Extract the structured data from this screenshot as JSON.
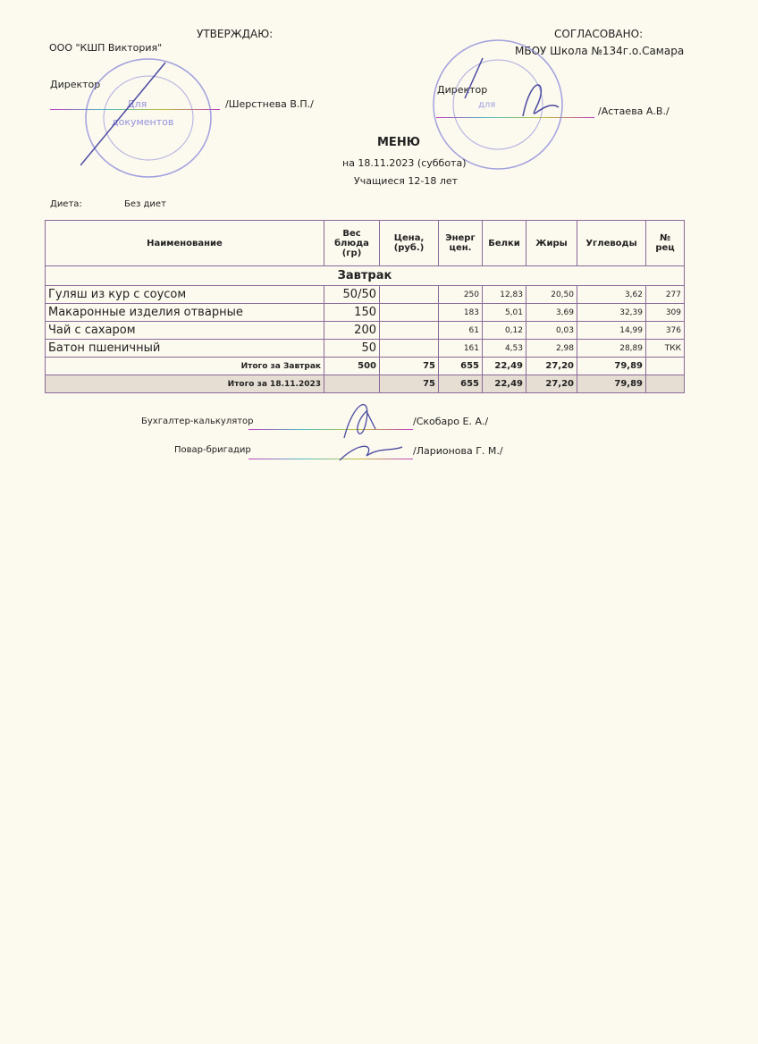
{
  "approve": {
    "title": "УТВЕРЖДАЮ:",
    "org": "ООО \"КШП Виктория\"",
    "role": "Директор",
    "name": "/Шерстнева В.П./"
  },
  "agree": {
    "title": "СОГЛАСОВАНО:",
    "org": "МБОУ Школа №134г.о.Самара",
    "role": "Директор",
    "name": "/Астаева А.В./"
  },
  "header": {
    "title": "МЕНЮ",
    "date": "на 18.11.2023  (суббота)",
    "group": "Учащиеся 12-18 лет"
  },
  "diet": {
    "label": "Диета:",
    "value": "Без диет"
  },
  "table": {
    "columns": [
      "Наименование",
      "Вес блюда (гр)",
      "Цена, (руб.)",
      "Энерг цен.",
      "Белки",
      "Жиры",
      "Углеводы",
      "№ рец"
    ],
    "section": "Завтрак",
    "rows": [
      [
        "Гуляш из кур с соусом",
        "50/50",
        "",
        "250",
        "12,83",
        "20,50",
        "3,62",
        "277"
      ],
      [
        "Макаронные изделия отварные",
        "150",
        "",
        "183",
        "5,01",
        "3,69",
        "32,39",
        "309"
      ],
      [
        "Чай с сахаром",
        "200",
        "",
        "61",
        "0,12",
        "0,03",
        "14,99",
        "376"
      ],
      [
        "Батон пшеничный",
        "50",
        "",
        "161",
        "4,53",
        "2,98",
        "28,89",
        "ТКК"
      ]
    ],
    "subtotal": [
      "Итого за Завтрак",
      "500",
      "75",
      "655",
      "22,49",
      "27,20",
      "79,89",
      ""
    ],
    "total": [
      "Итого за 18.11.2023",
      "",
      "75",
      "655",
      "22,49",
      "27,20",
      "79,89",
      ""
    ]
  },
  "signatures": [
    {
      "role": "Бухгалтер-калькулятор",
      "name": "/Скобаро Е. А./"
    },
    {
      "role": "Повар-бригадир",
      "name": "/Ларионова Г. М./"
    }
  ],
  "stamps": {
    "left_text": "Для документов",
    "right_text": "для документов",
    "color": "#6a6ad0"
  }
}
